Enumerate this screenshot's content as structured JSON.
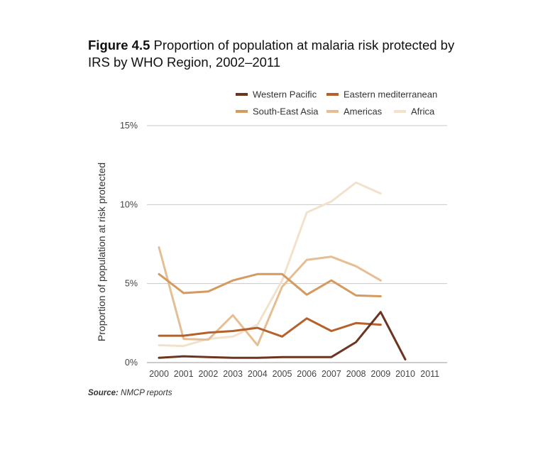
{
  "figure": {
    "label": "Figure 4.5",
    "caption": "Proportion of population at malaria risk protected by IRS by WHO Region, 2002–2011",
    "source_label": "Source:",
    "source_text": "NMCP reports"
  },
  "chart_data": {
    "type": "line",
    "title": "Figure 4.5 Proportion of population at malaria risk protected by IRS by WHO Region, 2002–2011",
    "xlabel": "",
    "ylabel": "Proportion of population at risk protected",
    "x": [
      "2000",
      "2001",
      "2002",
      "2003",
      "2004",
      "2005",
      "2006",
      "2007",
      "2008",
      "2009",
      "2010",
      "2011"
    ],
    "ylim": [
      0,
      15
    ],
    "y_ticks": [
      0,
      5,
      10,
      15
    ],
    "y_tick_labels": [
      "0%",
      "5%",
      "10%",
      "15%"
    ],
    "grid": true,
    "legend_position": "top-right",
    "series": [
      {
        "name": "Western Pacific",
        "color": "#6b3520",
        "values": [
          0.3,
          0.4,
          0.35,
          0.3,
          0.3,
          0.35,
          0.35,
          0.35,
          1.3,
          3.2,
          0.2,
          null
        ]
      },
      {
        "name": "Eastern mediterranean",
        "color": "#b4612c",
        "values": [
          1.7,
          1.7,
          1.9,
          2.0,
          2.2,
          1.65,
          2.8,
          2.0,
          2.5,
          2.4,
          null,
          null
        ]
      },
      {
        "name": "South-East Asia",
        "color": "#d49a60",
        "values": [
          5.6,
          4.4,
          4.5,
          5.2,
          5.6,
          5.6,
          4.3,
          5.2,
          4.25,
          4.2,
          null,
          null
        ]
      },
      {
        "name": "Americas",
        "color": "#e6be94",
        "values": [
          7.3,
          1.5,
          1.45,
          3.0,
          1.1,
          4.8,
          6.5,
          6.7,
          6.1,
          5.2,
          null,
          null
        ]
      },
      {
        "name": "Africa",
        "color": "#f2e1cc",
        "values": [
          1.1,
          1.05,
          1.5,
          1.65,
          2.4,
          5.2,
          9.5,
          10.2,
          11.4,
          10.7,
          null,
          null
        ]
      }
    ]
  }
}
